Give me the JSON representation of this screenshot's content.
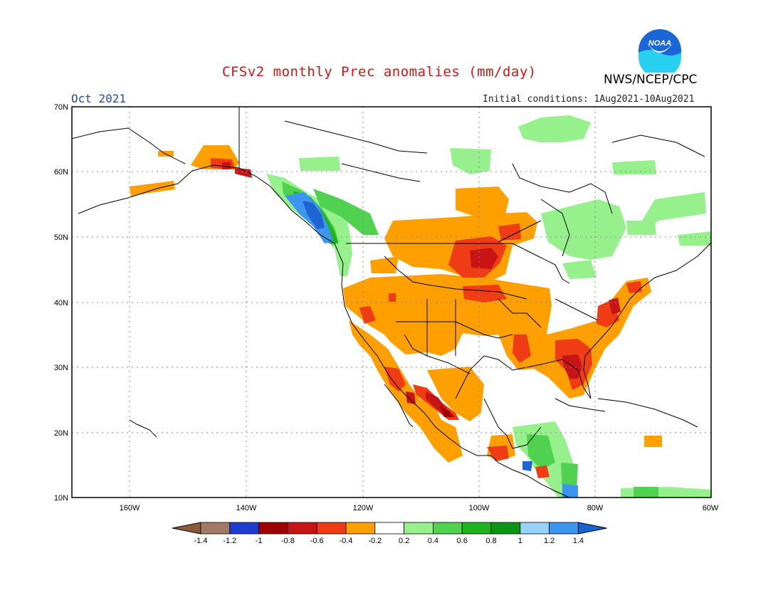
{
  "header": {
    "title": "CFSv2 monthly Prec anomalies (mm/day)",
    "period": "Oct 2021",
    "initial_conditions": "Initial conditions: 1Aug2021-10Aug2021",
    "agency": "NWS/NCEP/CPC",
    "logo_text": "NOAA"
  },
  "map": {
    "lat_labels": [
      "70N",
      "60N",
      "50N",
      "40N",
      "30N",
      "20N",
      "10N"
    ],
    "lon_labels": [
      "160W",
      "140W",
      "120W",
      "100W",
      "80W",
      "60W"
    ]
  },
  "legend": {
    "tick_labels": [
      "-1.4",
      "-1.2",
      "-1",
      "-0.8",
      "-0.6",
      "-0.4",
      "-0.2",
      "0.2",
      "0.4",
      "0.6",
      "0.8",
      "1",
      "1.2",
      "1.4"
    ],
    "colors": [
      "#8b5a3c",
      "#a07a64",
      "#1e3cd2",
      "#a00000",
      "#c81414",
      "#f03c14",
      "#ffa000",
      "#ffffff",
      "#96f08c",
      "#50d250",
      "#1eb41e",
      "#0a9614",
      "#96d2fa",
      "#3c96f0",
      "#1464d2"
    ]
  },
  "regions": [
    {
      "name": "Pacific Northwest coast",
      "anomaly": "+0.4 to +1.2"
    },
    {
      "name": "US Southwest / Mexico",
      "anomaly": "-0.2 to -1.0"
    },
    {
      "name": "Upper Midwest",
      "anomaly": "-0.4 to -0.8"
    },
    {
      "name": "US Southeast / Florida",
      "anomaly": "-0.4 to -1.0"
    },
    {
      "name": "Eastern Canada",
      "anomaly": "+0.2 to +0.4"
    }
  ]
}
